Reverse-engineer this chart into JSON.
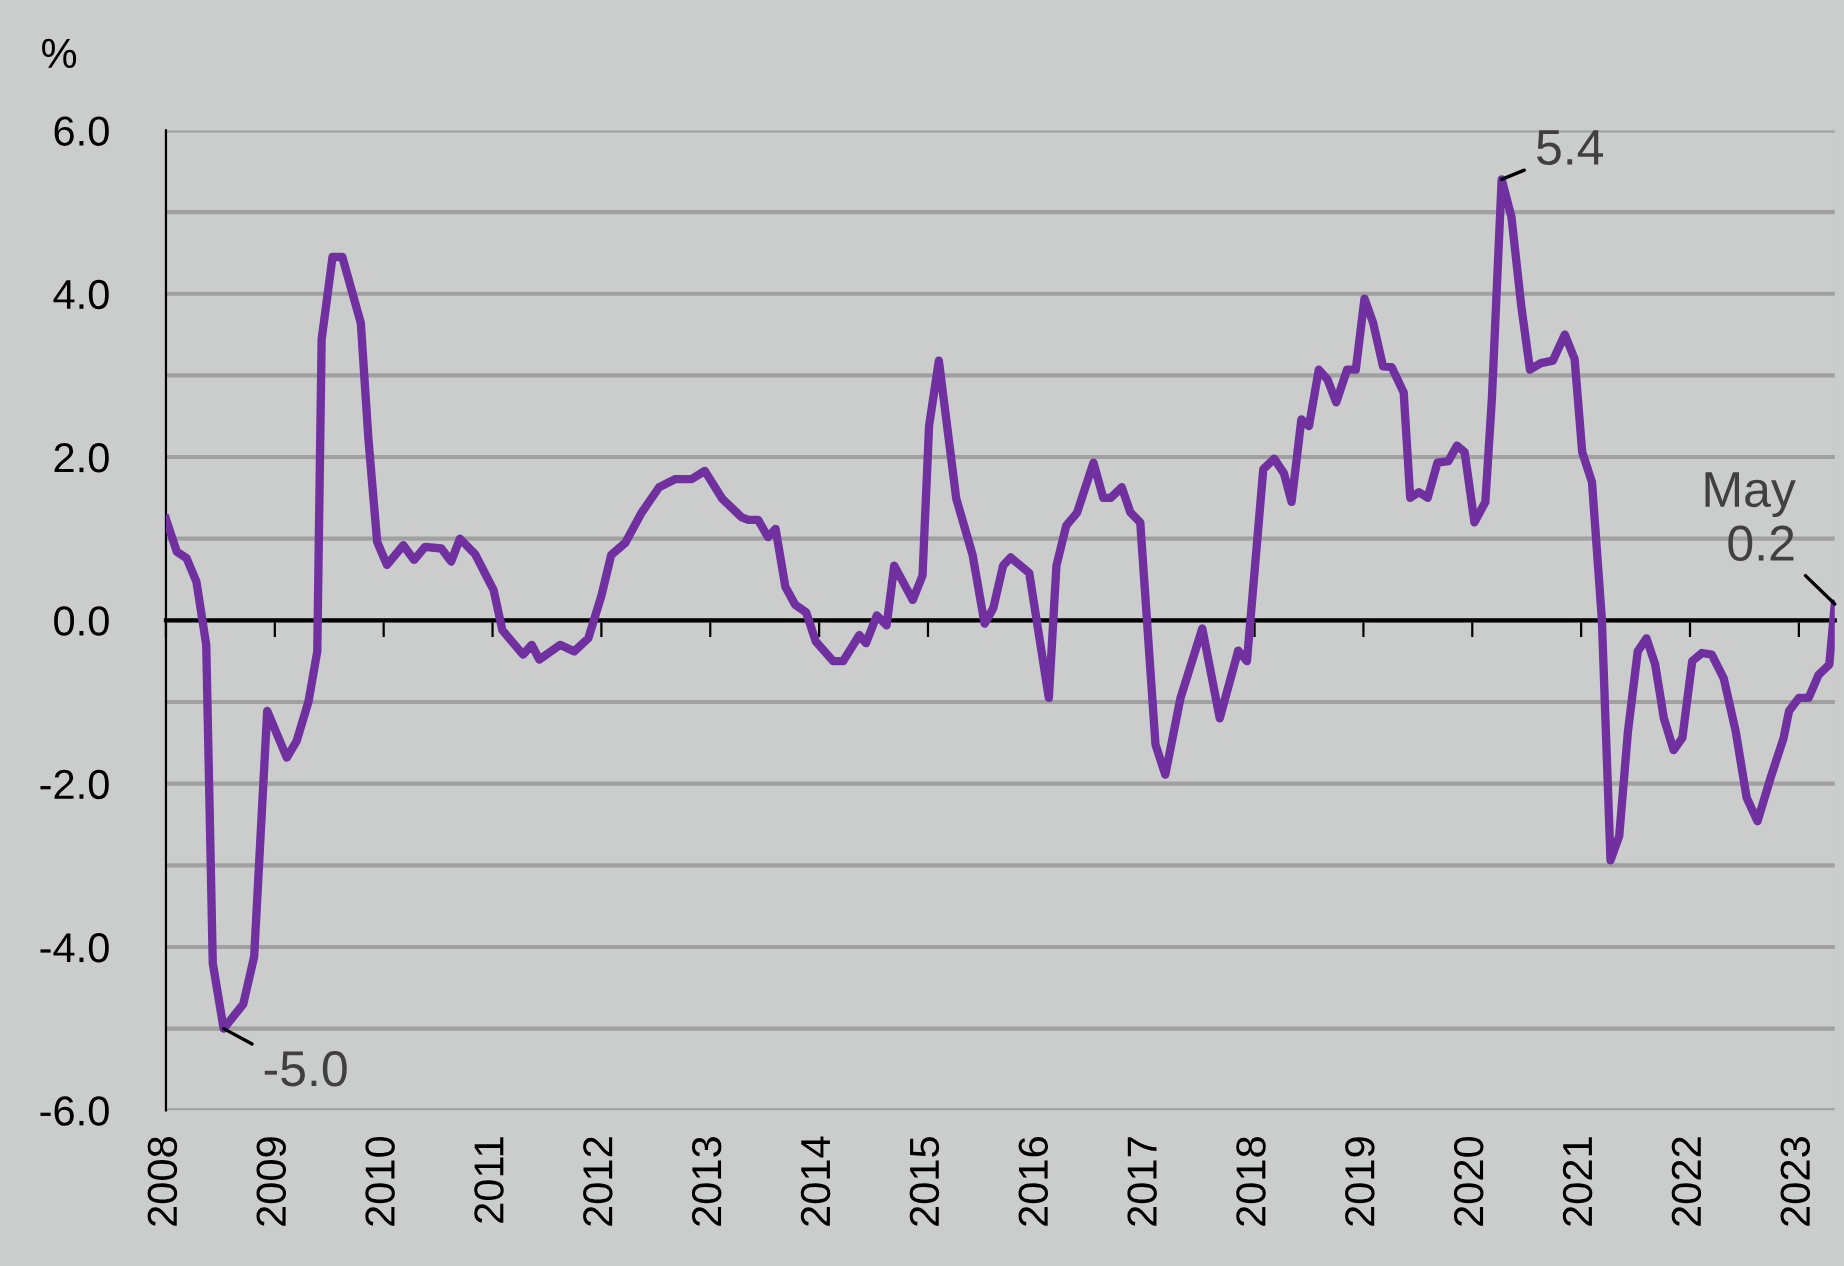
{
  "chart_data": {
    "type": "line",
    "ylabel": "%",
    "x": [
      2008.0,
      2008.1,
      2008.19,
      2008.28,
      2008.37,
      2008.43,
      2008.53,
      2008.71,
      2008.81,
      2008.93,
      2009.11,
      2009.2,
      2009.31,
      2009.39,
      2009.43,
      2009.53,
      2009.62,
      2009.79,
      2009.86,
      2009.94,
      2010.03,
      2010.18,
      2010.28,
      2010.38,
      2010.53,
      2010.62,
      2010.7,
      2010.84,
      2011.01,
      2011.09,
      2011.28,
      2011.36,
      2011.43,
      2011.62,
      2011.75,
      2011.88,
      2012.0,
      2012.09,
      2012.22,
      2012.37,
      2012.53,
      2012.68,
      2012.83,
      2012.95,
      2013.11,
      2013.29,
      2013.35,
      2013.44,
      2013.53,
      2013.6,
      2013.69,
      2013.78,
      2013.88,
      2013.97,
      2014.13,
      2014.22,
      2014.37,
      2014.43,
      2014.53,
      2014.62,
      2014.69,
      2014.86,
      2014.95,
      2015.01,
      2015.1,
      2015.26,
      2015.41,
      2015.52,
      2015.6,
      2015.69,
      2015.76,
      2015.93,
      2016.11,
      2016.18,
      2016.27,
      2016.37,
      2016.52,
      2016.61,
      2016.68,
      2016.78,
      2016.86,
      2016.95,
      2017.09,
      2017.18,
      2017.32,
      2017.52,
      2017.68,
      2017.85,
      2017.93,
      2018.08,
      2018.18,
      2018.27,
      2018.34,
      2018.43,
      2018.5,
      2018.59,
      2018.67,
      2018.75,
      2018.85,
      2018.93,
      2019.01,
      2019.09,
      2019.18,
      2019.26,
      2019.37,
      2019.43,
      2019.51,
      2019.59,
      2019.68,
      2019.78,
      2019.86,
      2019.93,
      2020.02,
      2020.12,
      2020.18,
      2020.27,
      2020.36,
      2020.45,
      2020.53,
      2020.63,
      2020.74,
      2020.85,
      2020.94,
      2021.01,
      2021.1,
      2021.19,
      2021.27,
      2021.35,
      2021.43,
      2021.52,
      2021.6,
      2021.68,
      2021.76,
      2021.85,
      2021.93,
      2022.02,
      2022.11,
      2022.2,
      2022.31,
      2022.42,
      2022.52,
      2022.62,
      2022.74,
      2022.86,
      2022.91,
      2023.0,
      2023.09,
      2023.18,
      2023.28,
      2023.33
    ],
    "series": [
      {
        "color": "#7030a0",
        "values": [
          1.24,
          0.84,
          0.76,
          0.47,
          -0.3,
          -4.2,
          -5.0,
          -4.7,
          -4.12,
          -1.11,
          -1.68,
          -1.48,
          -0.99,
          -0.38,
          3.44,
          4.45,
          4.45,
          3.64,
          2.22,
          0.96,
          0.68,
          0.92,
          0.74,
          0.9,
          0.88,
          0.72,
          1.0,
          0.81,
          0.37,
          -0.12,
          -0.42,
          -0.3,
          -0.48,
          -0.3,
          -0.38,
          -0.22,
          0.3,
          0.8,
          0.95,
          1.32,
          1.63,
          1.73,
          1.73,
          1.83,
          1.49,
          1.26,
          1.23,
          1.23,
          1.02,
          1.12,
          0.41,
          0.19,
          0.1,
          -0.26,
          -0.5,
          -0.5,
          -0.18,
          -0.28,
          0.06,
          -0.06,
          0.67,
          0.25,
          0.55,
          2.38,
          3.18,
          1.49,
          0.8,
          -0.04,
          0.15,
          0.67,
          0.77,
          0.58,
          -0.95,
          0.67,
          1.16,
          1.32,
          1.93,
          1.5,
          1.5,
          1.63,
          1.32,
          1.2,
          -1.52,
          -1.89,
          -0.95,
          -0.1,
          -1.2,
          -0.37,
          -0.5,
          1.85,
          1.98,
          1.8,
          1.45,
          2.46,
          2.38,
          3.07,
          2.95,
          2.67,
          3.07,
          3.07,
          3.94,
          3.64,
          3.11,
          3.1,
          2.79,
          1.5,
          1.57,
          1.5,
          1.93,
          1.95,
          2.14,
          2.06,
          1.2,
          1.45,
          2.71,
          5.4,
          4.94,
          3.85,
          3.07,
          3.15,
          3.18,
          3.5,
          3.2,
          2.06,
          1.69,
          0.02,
          -2.94,
          -2.64,
          -1.36,
          -0.38,
          -0.22,
          -0.54,
          -1.2,
          -1.59,
          -1.44,
          -0.5,
          -0.4,
          -0.42,
          -0.71,
          -1.36,
          -2.17,
          -2.46,
          -1.93,
          -1.44,
          -1.11,
          -0.95,
          -0.95,
          -0.67,
          -0.54,
          0.2
        ]
      }
    ],
    "xlim": [
      2008,
      2023.33
    ],
    "xticks": [
      2008,
      2009,
      2010,
      2011,
      2012,
      2013,
      2014,
      2015,
      2016,
      2017,
      2018,
      2019,
      2020,
      2021,
      2022,
      2023
    ],
    "ylim": [
      -6,
      6
    ],
    "yticks": [
      {
        "value": -6,
        "label": "-6.0"
      },
      {
        "value": -5,
        "label": null
      },
      {
        "value": -4,
        "label": "-4.0"
      },
      {
        "value": -3,
        "label": null
      },
      {
        "value": -2,
        "label": "-2.0"
      },
      {
        "value": -1,
        "label": null
      },
      {
        "value": 0,
        "label": "0.0"
      },
      {
        "value": 1,
        "label": null
      },
      {
        "value": 2,
        "label": "2.0"
      },
      {
        "value": 3,
        "label": null
      },
      {
        "value": 4,
        "label": "4.0"
      },
      {
        "value": 5,
        "label": null
      },
      {
        "value": 6,
        "label": "6.0"
      }
    ],
    "grid": "y",
    "legend": false,
    "marker": "none",
    "line_style": "solid",
    "annotations": [
      {
        "text": "-5.0",
        "x": 2008.53,
        "y": -5.0
      },
      {
        "text": "5.4",
        "x": 2020.27,
        "y": 5.4
      },
      {
        "text": "May\n0.2",
        "x": 2023.33,
        "y": 0.2
      }
    ]
  }
}
